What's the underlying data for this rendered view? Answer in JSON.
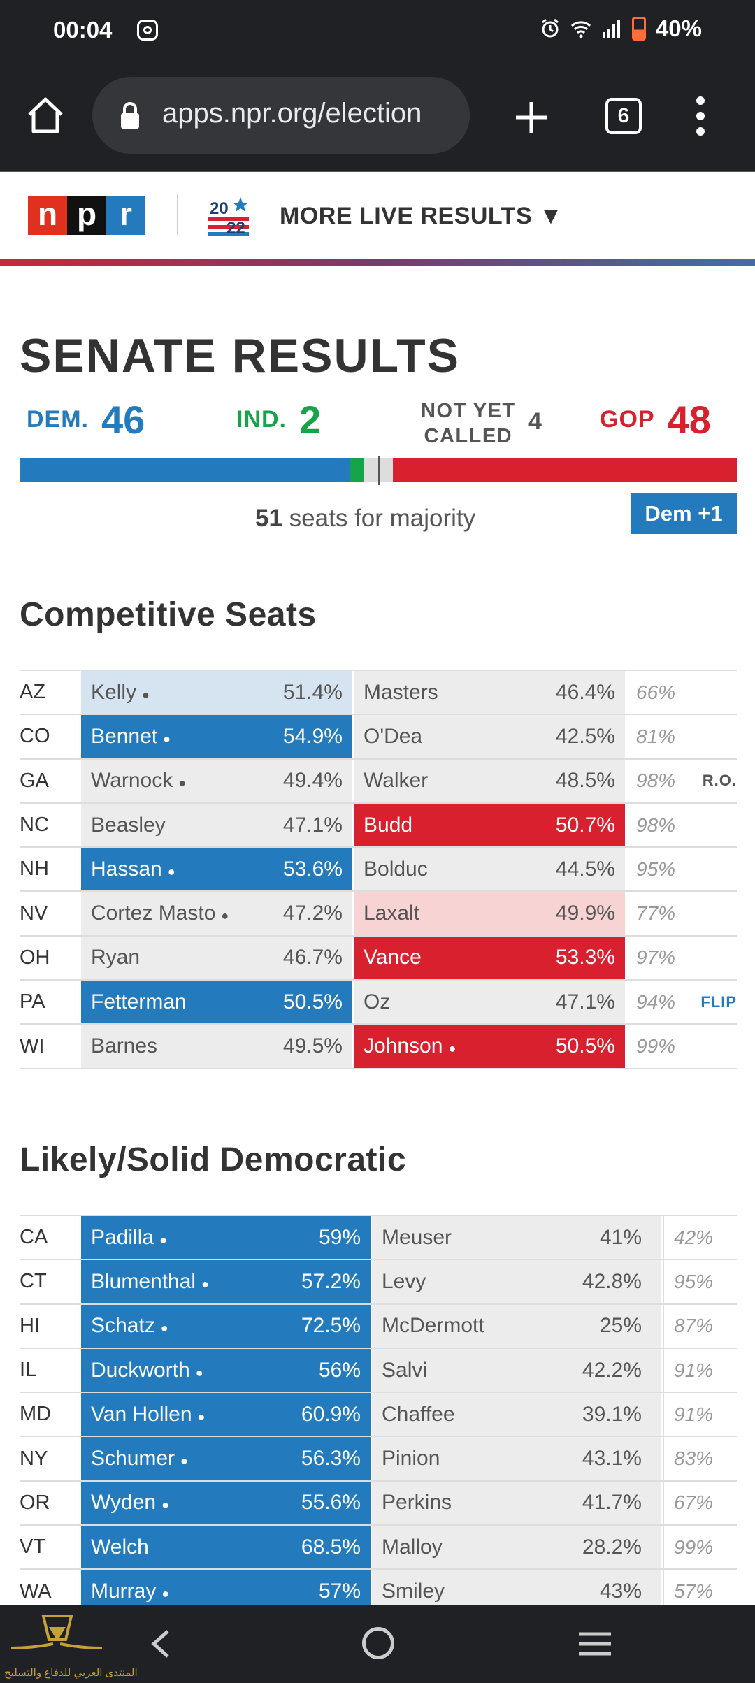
{
  "status_bar": {
    "time": "00:04",
    "battery": "40%"
  },
  "browser": {
    "url": "apps.npr.org/election",
    "tab_count": "6"
  },
  "header": {
    "more_live": "MORE LIVE RESULTS ▼"
  },
  "title": "SENATE RESULTS",
  "tally": {
    "dem_label": "DEM.",
    "dem": 46,
    "ind_label": "IND.",
    "ind": 2,
    "nyc_line1": "NOT YET",
    "nyc_line2": "CALLED",
    "nyc": 4,
    "gop_label": "GOP",
    "gop": 48,
    "majority_num": "51",
    "majority_text": "seats for majority",
    "badge": "Dem +1",
    "colors": {
      "dem": "#237bbd",
      "ind": "#17a34a",
      "gop": "#d9202f",
      "uncalled": "#dddddd"
    }
  },
  "competitive": {
    "title": "Competitive Seats",
    "rows": [
      {
        "state": "AZ",
        "dem": "Kelly",
        "dem_inc": true,
        "dem_pct": "51.4%",
        "gop": "Masters",
        "gop_inc": false,
        "gop_pct": "46.4%",
        "reporting": "66%",
        "flag": "",
        "status": "lead-d"
      },
      {
        "state": "CO",
        "dem": "Bennet",
        "dem_inc": true,
        "dem_pct": "54.9%",
        "gop": "O'Dea",
        "gop_inc": false,
        "gop_pct": "42.5%",
        "reporting": "81%",
        "flag": "",
        "status": "win-d"
      },
      {
        "state": "GA",
        "dem": "Warnock",
        "dem_inc": true,
        "dem_pct": "49.4%",
        "gop": "Walker",
        "gop_inc": false,
        "gop_pct": "48.5%",
        "reporting": "98%",
        "flag": "R.O.",
        "status": "none"
      },
      {
        "state": "NC",
        "dem": "Beasley",
        "dem_inc": false,
        "dem_pct": "47.1%",
        "gop": "Budd",
        "gop_inc": false,
        "gop_pct": "50.7%",
        "reporting": "98%",
        "flag": "",
        "status": "win-r"
      },
      {
        "state": "NH",
        "dem": "Hassan",
        "dem_inc": true,
        "dem_pct": "53.6%",
        "gop": "Bolduc",
        "gop_inc": false,
        "gop_pct": "44.5%",
        "reporting": "95%",
        "flag": "",
        "status": "win-d"
      },
      {
        "state": "NV",
        "dem": "Cortez Masto",
        "dem_inc": true,
        "dem_pct": "47.2%",
        "gop": "Laxalt",
        "gop_inc": false,
        "gop_pct": "49.9%",
        "reporting": "77%",
        "flag": "",
        "status": "lead-r"
      },
      {
        "state": "OH",
        "dem": "Ryan",
        "dem_inc": false,
        "dem_pct": "46.7%",
        "gop": "Vance",
        "gop_inc": false,
        "gop_pct": "53.3%",
        "reporting": "97%",
        "flag": "",
        "status": "win-r"
      },
      {
        "state": "PA",
        "dem": "Fetterman",
        "dem_inc": false,
        "dem_pct": "50.5%",
        "gop": "Oz",
        "gop_inc": false,
        "gop_pct": "47.1%",
        "reporting": "94%",
        "flag": "FLIP",
        "status": "win-d"
      },
      {
        "state": "WI",
        "dem": "Barnes",
        "dem_inc": false,
        "dem_pct": "49.5%",
        "gop": "Johnson",
        "gop_inc": true,
        "gop_pct": "50.5%",
        "reporting": "99%",
        "flag": "",
        "status": "win-r"
      }
    ]
  },
  "likely_dem": {
    "title": "Likely/Solid Democratic",
    "rows": [
      {
        "state": "CA",
        "dem": "Padilla",
        "dem_inc": true,
        "dem_pct": "59%",
        "gop": "Meuser",
        "gop_inc": false,
        "gop_pct": "41%",
        "reporting": "42%",
        "status": "win-d"
      },
      {
        "state": "CT",
        "dem": "Blumenthal",
        "dem_inc": true,
        "dem_pct": "57.2%",
        "gop": "Levy",
        "gop_inc": false,
        "gop_pct": "42.8%",
        "reporting": "95%",
        "status": "win-d"
      },
      {
        "state": "HI",
        "dem": "Schatz",
        "dem_inc": true,
        "dem_pct": "72.5%",
        "gop": "McDermott",
        "gop_inc": false,
        "gop_pct": "25%",
        "reporting": "87%",
        "status": "win-d"
      },
      {
        "state": "IL",
        "dem": "Duckworth",
        "dem_inc": true,
        "dem_pct": "56%",
        "gop": "Salvi",
        "gop_inc": false,
        "gop_pct": "42.2%",
        "reporting": "91%",
        "status": "win-d"
      },
      {
        "state": "MD",
        "dem": "Van Hollen",
        "dem_inc": true,
        "dem_pct": "60.9%",
        "gop": "Chaffee",
        "gop_inc": false,
        "gop_pct": "39.1%",
        "reporting": "91%",
        "status": "win-d"
      },
      {
        "state": "NY",
        "dem": "Schumer",
        "dem_inc": true,
        "dem_pct": "56.3%",
        "gop": "Pinion",
        "gop_inc": false,
        "gop_pct": "43.1%",
        "reporting": "83%",
        "status": "win-d"
      },
      {
        "state": "OR",
        "dem": "Wyden",
        "dem_inc": true,
        "dem_pct": "55.6%",
        "gop": "Perkins",
        "gop_inc": false,
        "gop_pct": "41.7%",
        "reporting": "67%",
        "status": "win-d"
      },
      {
        "state": "VT",
        "dem": "Welch",
        "dem_inc": false,
        "dem_pct": "68.5%",
        "gop": "Malloy",
        "gop_inc": false,
        "gop_pct": "28.2%",
        "reporting": "99%",
        "status": "win-d"
      },
      {
        "state": "WA",
        "dem": "Murray",
        "dem_inc": true,
        "dem_pct": "57%",
        "gop": "Smiley",
        "gop_inc": false,
        "gop_pct": "43%",
        "reporting": "57%",
        "status": "win-d"
      }
    ]
  },
  "watermark_text": "المنتدى العربي للدفاع والتسليح"
}
